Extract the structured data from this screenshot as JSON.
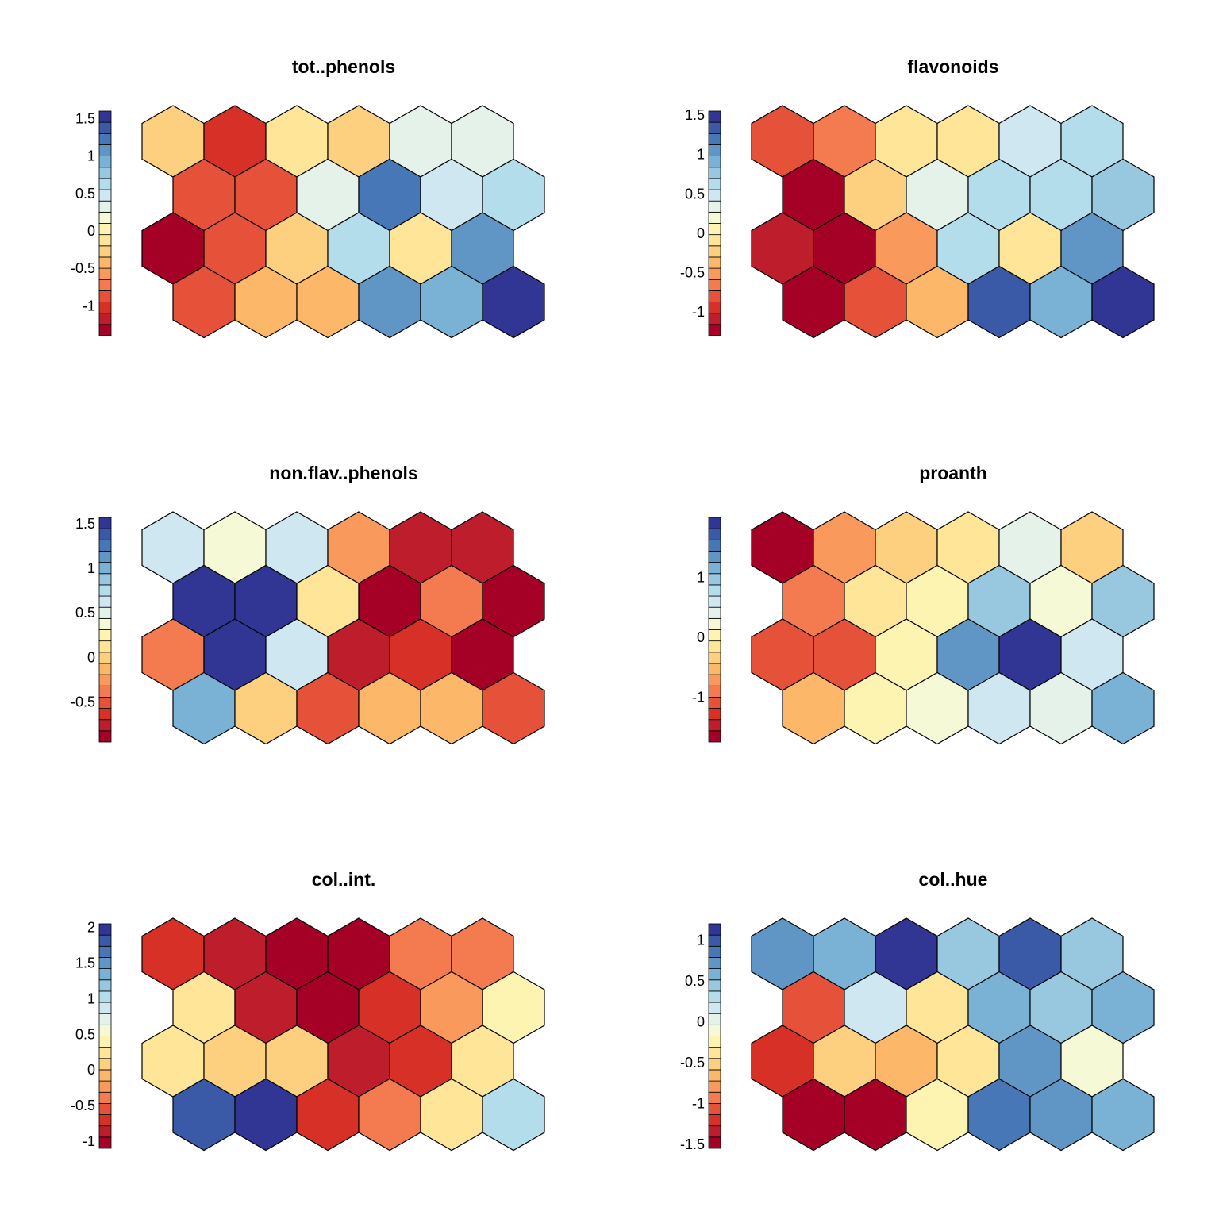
{
  "palette": [
    "#A50026",
    "#BE1E2C",
    "#D73127",
    "#E6513A",
    "#F47A4F",
    "#F99A5C",
    "#FDB768",
    "#FDD07F",
    "#FEE597",
    "#FEF4B2",
    "#F5F9D6",
    "#E4F2EA",
    "#CFE7F1",
    "#B4DDEB",
    "#98C7E0",
    "#79B2D4",
    "#6096C6",
    "#4777B6",
    "#3A59A6",
    "#313695"
  ],
  "chart_data": [
    {
      "type": "heatmap",
      "title": "tot..phenols",
      "ticks": [
        1.5,
        1,
        0.5,
        0,
        -0.5,
        -1
      ],
      "tick_labels": [
        "1.5",
        "1",
        "0.5",
        "0",
        "-0.5",
        "-1"
      ],
      "range": [
        -1.4,
        1.6
      ],
      "rows": [
        [
          7,
          2,
          8,
          7,
          11,
          11
        ],
        [
          3,
          3,
          11,
          17,
          12,
          13
        ],
        [
          0,
          3,
          7,
          13,
          8,
          16
        ],
        [
          3,
          6,
          6,
          16,
          15,
          19
        ]
      ]
    },
    {
      "type": "heatmap",
      "title": "flavonoids",
      "ticks": [
        1.5,
        1,
        0.5,
        0,
        -0.5,
        -1
      ],
      "tick_labels": [
        "1.5",
        "1",
        "0.5",
        "0",
        "-0.5",
        "-1"
      ],
      "range": [
        -1.3,
        1.55
      ],
      "rows": [
        [
          3,
          4,
          8,
          8,
          12,
          13
        ],
        [
          0,
          7,
          11,
          13,
          13,
          14
        ],
        [
          1,
          0,
          5,
          13,
          8,
          16
        ],
        [
          0,
          3,
          6,
          18,
          15,
          19
        ]
      ]
    },
    {
      "type": "heatmap",
      "title": "non.flav..phenols",
      "ticks": [
        1.5,
        1,
        0.5,
        0,
        -0.5
      ],
      "tick_labels": [
        "1.5",
        "1",
        "0.5",
        "0",
        "-0.5"
      ],
      "range": [
        -0.95,
        1.57
      ],
      "rows": [
        [
          12,
          10,
          12,
          5,
          1,
          1
        ],
        [
          19,
          19,
          8,
          0,
          4,
          0
        ],
        [
          4,
          19,
          12,
          1,
          2,
          0
        ],
        [
          15,
          7,
          3,
          6,
          6,
          3
        ]
      ]
    },
    {
      "type": "heatmap",
      "title": "proanth",
      "ticks": [
        1,
        0,
        -1
      ],
      "tick_labels": [
        "1",
        "0",
        "-1"
      ],
      "range": [
        -1.75,
        2.0
      ],
      "rows": [
        [
          0,
          5,
          7,
          8,
          11,
          7
        ],
        [
          4,
          8,
          9,
          14,
          10,
          14
        ],
        [
          3,
          3,
          9,
          16,
          19,
          12
        ],
        [
          6,
          9,
          10,
          12,
          11,
          15
        ]
      ]
    },
    {
      "type": "heatmap",
      "title": "col..int.",
      "ticks": [
        2,
        1.5,
        1,
        0.5,
        0,
        -0.5,
        -1
      ],
      "tick_labels": [
        "2",
        "1.5",
        "1",
        "0.5",
        "0",
        "-0.5",
        "-1"
      ],
      "range": [
        -1.1,
        2.05
      ],
      "rows": [
        [
          2,
          1,
          0,
          0,
          4,
          4
        ],
        [
          8,
          1,
          0,
          2,
          5,
          9
        ],
        [
          8,
          7,
          7,
          1,
          2,
          8
        ],
        [
          18,
          19,
          2,
          4,
          8,
          13
        ]
      ]
    },
    {
      "type": "heatmap",
      "title": "col..hue",
      "ticks": [
        1,
        0.5,
        0,
        -0.5,
        -1,
        -1.5
      ],
      "tick_labels": [
        "1",
        "0.5",
        "0",
        "-0.5",
        "-1",
        "-1.5"
      ],
      "range": [
        -1.55,
        1.2
      ],
      "rows": [
        [
          16,
          15,
          19,
          14,
          18,
          14
        ],
        [
          3,
          12,
          8,
          15,
          14,
          15
        ],
        [
          2,
          7,
          6,
          8,
          16,
          10
        ],
        [
          0,
          0,
          9,
          17,
          16,
          15
        ]
      ]
    }
  ]
}
